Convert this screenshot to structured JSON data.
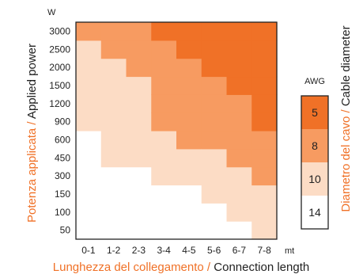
{
  "chart_data": {
    "type": "heatmap",
    "x_categories": [
      "0-1",
      "1-2",
      "2-3",
      "3-4",
      "4-5",
      "5-6",
      "6-7",
      "7-8"
    ],
    "y_categories": [
      "50",
      "100",
      "150",
      "300",
      "450",
      "600",
      "900",
      "1200",
      "1500",
      "2000",
      "2500",
      "3000"
    ],
    "x_unit": "mt",
    "y_unit": "W",
    "xlabel": {
      "it": "Lunghezza del collegamento",
      "sep": " / ",
      "en": "Connection length"
    },
    "ylabel": {
      "it": "Potenza applicata",
      "sep": " / ",
      "en": "Applied power"
    },
    "legend": {
      "title": "AWG",
      "axis_label": {
        "it": "Diametro del cavo",
        "sep": " / ",
        "en": "Cable diameter"
      },
      "items": [
        {
          "awg": "5",
          "color": "#f07127"
        },
        {
          "awg": "8",
          "color": "#f79b61"
        },
        {
          "awg": "10",
          "color": "#fcdcc5"
        },
        {
          "awg": "14",
          "color": "#ffffff"
        }
      ]
    },
    "awg_by_column": [
      {
        "x": "0-1",
        "awg": [
          14,
          14,
          14,
          14,
          14,
          14,
          10,
          10,
          10,
          10,
          10,
          8
        ]
      },
      {
        "x": "1-2",
        "awg": [
          14,
          14,
          14,
          14,
          10,
          10,
          10,
          10,
          10,
          10,
          8,
          8
        ]
      },
      {
        "x": "2-3",
        "awg": [
          14,
          14,
          14,
          14,
          10,
          10,
          10,
          10,
          10,
          8,
          8,
          8
        ]
      },
      {
        "x": "3-4",
        "awg": [
          14,
          14,
          14,
          10,
          10,
          10,
          8,
          8,
          8,
          8,
          8,
          5
        ]
      },
      {
        "x": "4-5",
        "awg": [
          14,
          14,
          14,
          10,
          10,
          8,
          8,
          8,
          8,
          8,
          5,
          5
        ]
      },
      {
        "x": "5-6",
        "awg": [
          14,
          14,
          10,
          10,
          10,
          8,
          8,
          8,
          8,
          5,
          5,
          5
        ]
      },
      {
        "x": "6-7",
        "awg": [
          14,
          10,
          10,
          10,
          8,
          8,
          8,
          8,
          5,
          5,
          5,
          5
        ]
      },
      {
        "x": "7-8",
        "awg": [
          10,
          10,
          10,
          8,
          8,
          8,
          5,
          5,
          5,
          5,
          5,
          5
        ]
      }
    ],
    "colors": {
      "label_orange": "#f07127",
      "text": "#222222",
      "border": "#222222"
    }
  }
}
